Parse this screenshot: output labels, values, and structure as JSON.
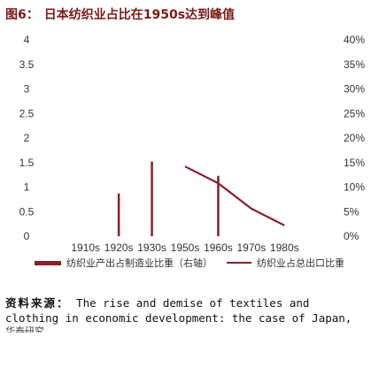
{
  "figure": {
    "label": "图6：",
    "title": "日本纺织业占比在1950s达到峰值"
  },
  "legend": {
    "bar_label": "纺织业产出占制造业比重（右轴）",
    "line_label": "纺织业占总出口比重"
  },
  "source": {
    "label": "资料来源：",
    "text_line1": "The rise and demise of textiles and",
    "text_line2": "clothing in economic development: the case of Japan,",
    "text_line3": "华泰研究"
  },
  "colors": {
    "bar": "#8b1e2d",
    "line": "#8b1e2d",
    "axis_text": "#333333"
  },
  "chart_data": {
    "type": "bar",
    "categories": [
      "1910s",
      "1920s",
      "1930s",
      "1950s",
      "1960s",
      "1970s",
      "1980s"
    ],
    "left_axis": {
      "ticks": [
        "0",
        "0.5",
        "1",
        "1.5",
        "2",
        "2.5",
        "3",
        "3.5",
        "4"
      ],
      "ylim": [
        0,
        4
      ]
    },
    "right_axis": {
      "ticks": [
        "0%",
        "5%",
        "10%",
        "15%",
        "20%",
        "25%",
        "30%",
        "35%",
        "40%"
      ],
      "ylim": [
        0,
        40
      ]
    },
    "series": [
      {
        "name": "纺织业产出占制造业比重（右轴）",
        "type": "bar",
        "axis": "left",
        "values": [
          0,
          0.87,
          1.52,
          0,
          1.23,
          0,
          0
        ]
      },
      {
        "name": "纺织业占总出口比重",
        "type": "line",
        "axis": "right",
        "values": [
          null,
          null,
          null,
          14.2,
          10.8,
          5.6,
          2.2
        ]
      }
    ]
  }
}
